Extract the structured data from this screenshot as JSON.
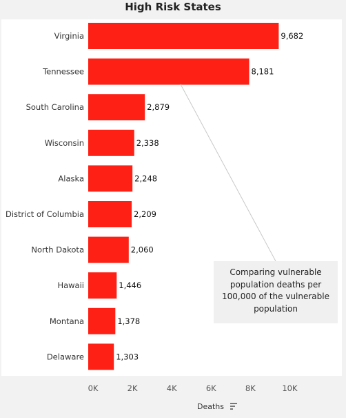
{
  "chart_data": {
    "type": "bar",
    "orientation": "horizontal",
    "title": "High Risk States",
    "categories": [
      "Virginia",
      "Tennessee",
      "South Carolina",
      "Wisconsin",
      "Alaska",
      "District of Columbia",
      "North Dakota",
      "Hawaii",
      "Montana",
      "Delaware"
    ],
    "values": [
      9682,
      8181,
      2879,
      2338,
      2248,
      2209,
      2060,
      1446,
      1378,
      1303
    ],
    "value_labels": [
      "9,682",
      "8,181",
      "2,879",
      "2,338",
      "2,248",
      "2,209",
      "2,060",
      "1,446",
      "1,378",
      "1,303"
    ],
    "xlabel": "Deaths",
    "xlim": [
      0,
      11000
    ],
    "xticks": [
      0,
      2000,
      4000,
      6000,
      8000,
      10000
    ],
    "xtick_labels": [
      "0K",
      "2K",
      "4K",
      "6K",
      "8K",
      "10K"
    ],
    "bar_color": "#ff2015",
    "grid": false,
    "annotation": "Comparing vulnerable population deaths per 100,000 of the vulnerable population"
  },
  "icons": {
    "sort": "sort-descending-icon"
  }
}
